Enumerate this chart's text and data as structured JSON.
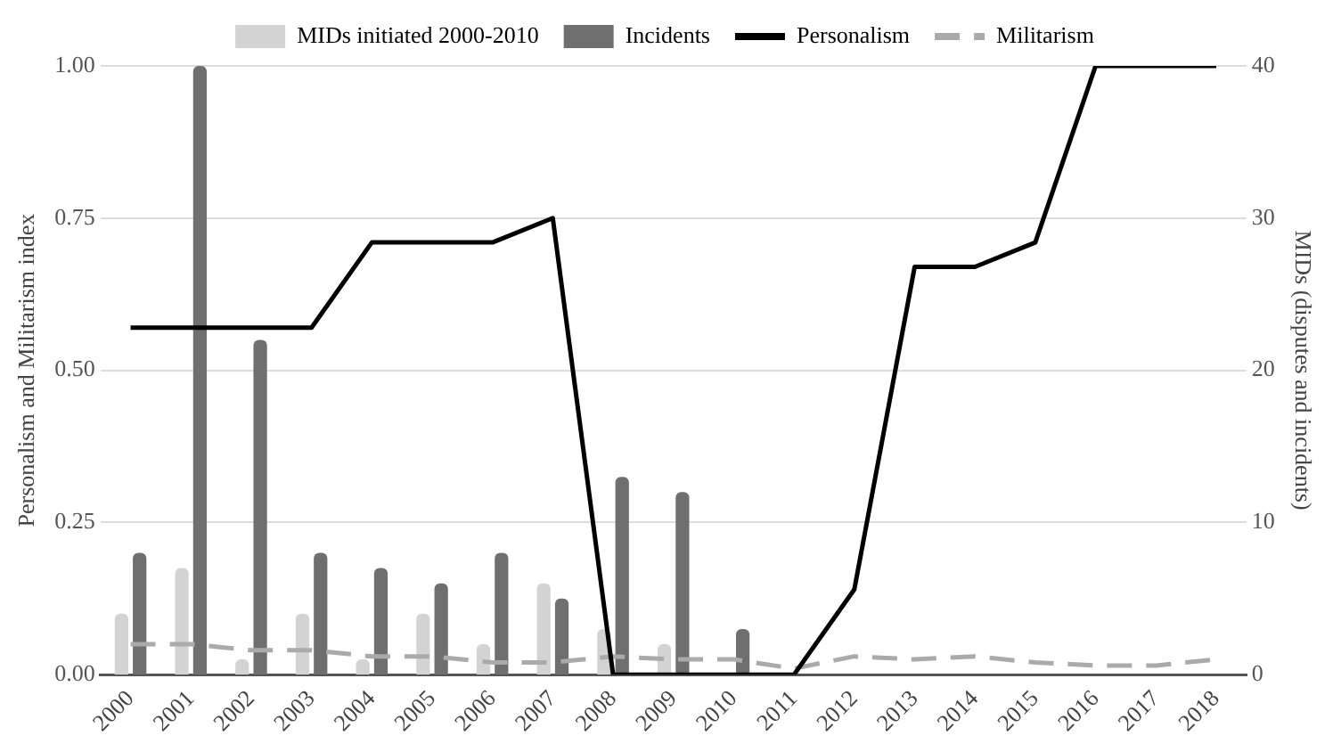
{
  "chart_data": {
    "type": "bar",
    "categories": [
      "2000",
      "2001",
      "2002",
      "2003",
      "2004",
      "2005",
      "2006",
      "2007",
      "2008",
      "2009",
      "2010",
      "2011",
      "2012",
      "2013",
      "2014",
      "2015",
      "2016",
      "2017",
      "2018"
    ],
    "ylabel": "Personalism and Militarism index",
    "y2label": "MIDs (disputes and incidents)",
    "ylim": [
      0,
      1
    ],
    "yticks": [
      {
        "value": 0,
        "label": "0.00"
      },
      {
        "value": 0.25,
        "label": "0.25"
      },
      {
        "value": 0.5,
        "label": "0.50"
      },
      {
        "value": 0.75,
        "label": "0.75"
      },
      {
        "value": 1,
        "label": "1.00"
      }
    ],
    "y2lim": [
      0,
      40
    ],
    "y2ticks": [
      0,
      10,
      20,
      30,
      40
    ],
    "grid": "y",
    "legend": "top",
    "series": [
      {
        "name": "MIDs initiated 2000-2010",
        "axis": "y2",
        "color": "#d3d3d3",
        "values": [
          4,
          7,
          1,
          4,
          1,
          4,
          2,
          6,
          3,
          2,
          0,
          null,
          null,
          null,
          null,
          null,
          null,
          null,
          null
        ]
      },
      {
        "name": "Incidents",
        "axis": "y2",
        "color": "#6f6f6f",
        "values": [
          8,
          40,
          22,
          8,
          7,
          6,
          8,
          5,
          13,
          12,
          3,
          null,
          null,
          null,
          null,
          null,
          null,
          null,
          null
        ]
      },
      {
        "name": "Personalism",
        "type": "line",
        "color": "#000000",
        "line_style": "solid",
        "marker": "none",
        "values": [
          0.57,
          0.57,
          0.57,
          0.57,
          0.71,
          0.71,
          0.71,
          0.75,
          0,
          0,
          0,
          0,
          0.14,
          0.67,
          0.67,
          0.71,
          1,
          1,
          1
        ]
      },
      {
        "name": "Militarism",
        "type": "line",
        "color": "#aaaaaa",
        "line_style": "dashed",
        "marker": "none",
        "values": [
          0.05,
          0.05,
          0.04,
          0.04,
          0.03,
          0.03,
          0.02,
          0.02,
          0.03,
          0.025,
          0.025,
          0.01,
          0.03,
          0.025,
          0.03,
          0.02,
          0.015,
          0.015,
          0.025
        ]
      }
    ]
  }
}
